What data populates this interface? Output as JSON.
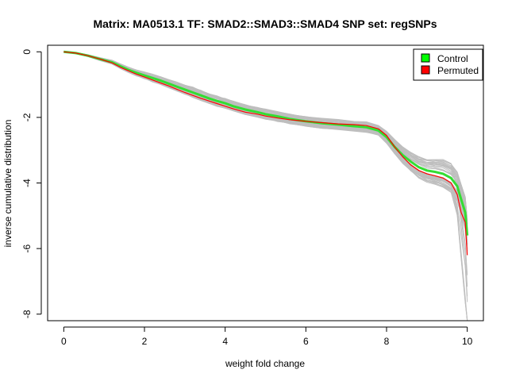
{
  "chart_data": {
    "type": "line",
    "title": "Matrix: MA0513.1 TF: SMAD2::SMAD3::SMAD4 SNP set: regSNPs",
    "xlabel": "weight fold change",
    "ylabel": "inverse cumulative distribution",
    "xlim": [
      -0.4,
      10.4
    ],
    "ylim": [
      -8.2,
      0.2
    ],
    "xticks": [
      0,
      2,
      4,
      6,
      8,
      10
    ],
    "yticks": [
      0,
      -2,
      -4,
      -6,
      -8
    ],
    "grid": false,
    "legend": {
      "position": "top-right",
      "entries": [
        {
          "label": "Control",
          "color": "#00ff00"
        },
        {
          "label": "Permuted",
          "color": "#ff0000"
        }
      ]
    },
    "background_series": {
      "color": "#bebebe",
      "count": 40,
      "note_visible": false
    },
    "series": [
      {
        "name": "Control",
        "color": "#33dd33",
        "x": [
          0,
          0.3,
          0.6,
          0.9,
          1.2,
          1.4,
          1.6,
          1.8,
          2.0,
          2.2,
          2.4,
          2.6,
          2.8,
          3.0,
          3.2,
          3.4,
          3.6,
          3.8,
          4.0,
          4.2,
          4.5,
          4.8,
          5.0,
          5.3,
          5.6,
          6.0,
          6.4,
          6.8,
          7.2,
          7.5,
          7.8,
          8.0,
          8.2,
          8.4,
          8.6,
          8.8,
          9.0,
          9.2,
          9.4,
          9.6,
          9.75,
          9.85,
          9.95,
          10.0
        ],
        "y": [
          0,
          -0.04,
          -0.12,
          -0.22,
          -0.32,
          -0.44,
          -0.55,
          -0.64,
          -0.72,
          -0.8,
          -0.88,
          -0.97,
          -1.06,
          -1.15,
          -1.24,
          -1.33,
          -1.42,
          -1.5,
          -1.57,
          -1.66,
          -1.76,
          -1.84,
          -1.9,
          -1.97,
          -2.05,
          -2.12,
          -2.18,
          -2.22,
          -2.27,
          -2.3,
          -2.4,
          -2.6,
          -2.9,
          -3.15,
          -3.35,
          -3.52,
          -3.62,
          -3.66,
          -3.72,
          -3.85,
          -4.1,
          -4.5,
          -4.9,
          -5.6
        ]
      },
      {
        "name": "Permuted",
        "color": "#ff0000",
        "x": [
          0,
          0.3,
          0.6,
          0.9,
          1.2,
          1.4,
          1.6,
          1.8,
          2.0,
          2.2,
          2.4,
          2.6,
          2.8,
          3.0,
          3.2,
          3.4,
          3.6,
          3.8,
          4.0,
          4.2,
          4.5,
          4.8,
          5.0,
          5.3,
          5.6,
          6.0,
          6.4,
          6.8,
          7.2,
          7.5,
          7.8,
          8.0,
          8.2,
          8.4,
          8.6,
          8.8,
          9.0,
          9.2,
          9.4,
          9.6,
          9.75,
          9.85,
          9.95,
          10.0
        ],
        "y": [
          0,
          -0.04,
          -0.12,
          -0.22,
          -0.34,
          -0.47,
          -0.58,
          -0.68,
          -0.77,
          -0.86,
          -0.95,
          -1.04,
          -1.14,
          -1.24,
          -1.33,
          -1.42,
          -1.5,
          -1.58,
          -1.66,
          -1.74,
          -1.84,
          -1.9,
          -1.96,
          -2.02,
          -2.07,
          -2.12,
          -2.16,
          -2.2,
          -2.22,
          -2.25,
          -2.35,
          -2.55,
          -2.9,
          -3.2,
          -3.45,
          -3.62,
          -3.72,
          -3.78,
          -3.85,
          -4.0,
          -4.35,
          -4.9,
          -5.2,
          -6.2
        ]
      }
    ]
  }
}
